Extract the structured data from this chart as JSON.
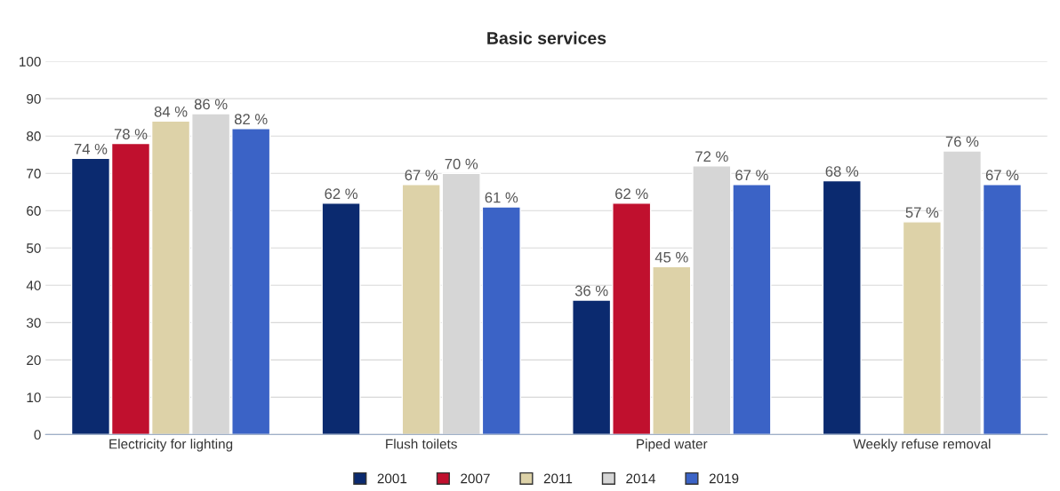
{
  "chart_data": {
    "type": "bar",
    "title": "Basic services",
    "categories": [
      "Electricity for lighting",
      "Flush toilets",
      "Piped water",
      "Weekly refuse removal"
    ],
    "series": [
      {
        "name": "2001",
        "color": "#0b2a6f",
        "values": [
          74,
          62,
          36,
          68
        ],
        "value_labels": [
          "74 %",
          "62 %",
          "36 %",
          "68 %"
        ]
      },
      {
        "name": "2007",
        "color": "#c0102e",
        "values": [
          78,
          null,
          62,
          null
        ],
        "value_labels": [
          "78 %",
          null,
          "62 %",
          null
        ]
      },
      {
        "name": "2011",
        "color": "#ddd2a8",
        "values": [
          84,
          67,
          45,
          57
        ],
        "value_labels": [
          "84 %",
          "67 %",
          "45 %",
          "57 %"
        ]
      },
      {
        "name": "2014",
        "color": "#d6d6d6",
        "values": [
          86,
          70,
          72,
          76
        ],
        "value_labels": [
          "86 %",
          "70 %",
          "72 %",
          "76 %"
        ]
      },
      {
        "name": "2019",
        "color": "#3b63c6",
        "values": [
          82,
          61,
          67,
          67
        ],
        "value_labels": [
          "82 %",
          "61 %",
          "67 %",
          "67 %"
        ]
      }
    ],
    "ylim": [
      0,
      100
    ],
    "yticks": [
      0,
      10,
      20,
      30,
      40,
      50,
      60,
      70,
      80,
      90,
      100
    ],
    "grid": "y",
    "legend": "bottom"
  }
}
